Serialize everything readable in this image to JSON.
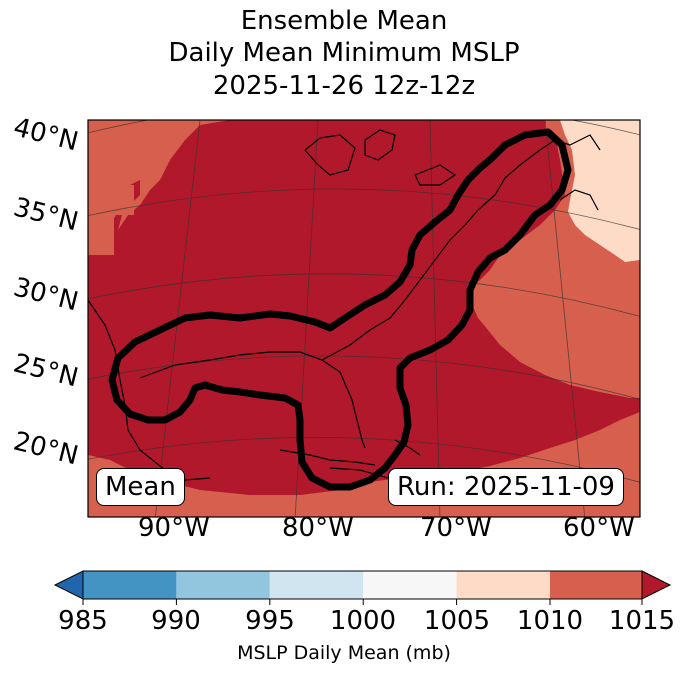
{
  "title": {
    "line1": "Ensemble Mean",
    "line2": "Daily Mean Minimum MSLP",
    "line3": "2025-11-26 12z-12z"
  },
  "map": {
    "lat_labels": [
      "40°N",
      "35°N",
      "30°N",
      "25°N",
      "20°N"
    ],
    "lon_labels": [
      "90°W",
      "80°W",
      "70°W",
      "60°W"
    ],
    "mean_box": "Mean",
    "run_box": "Run: 2025-11-09",
    "fill_colors": {
      "dark_red": "#b2182b",
      "medium_red": "#d6604d",
      "light_salmon": "#fddbc7"
    }
  },
  "colorbar": {
    "ticks": [
      "985",
      "990",
      "995",
      "1000",
      "1005",
      "1010",
      "1015"
    ],
    "label": "MSLP Daily Mean (mb)",
    "colors": [
      "#2166ac",
      "#4393c3",
      "#92c5de",
      "#d1e5f0",
      "#f7f7f7",
      "#fddbc7",
      "#d6604d",
      "#b2182b"
    ]
  }
}
